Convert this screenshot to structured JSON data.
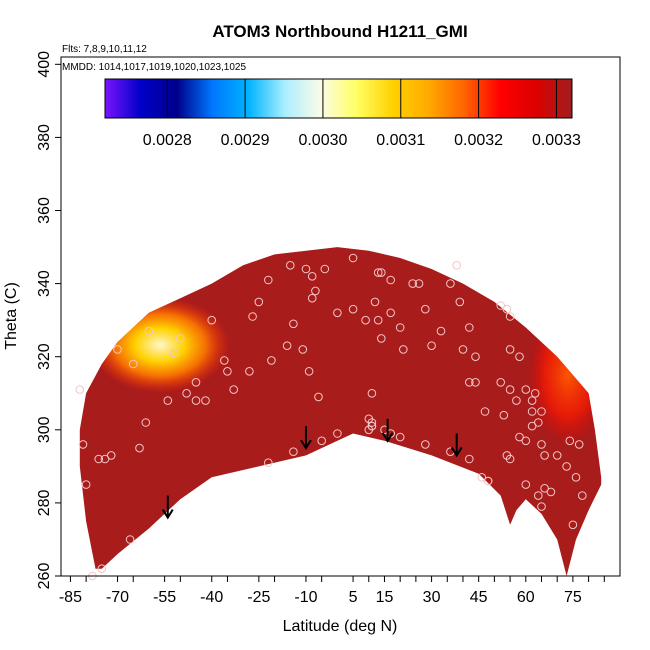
{
  "chart_data": {
    "type": "heatmap",
    "title": "ATOM3 Northbound H1211_GMI",
    "subtitle_lines": [
      "Flts: 7,8,9,10,11,12",
      "MMDD: 1014,1017,1019,1020,1023,1025"
    ],
    "xlabel": "Latitude (deg N)",
    "ylabel": "Theta (C)",
    "xlim": [
      -88,
      90
    ],
    "ylim": [
      260,
      402
    ],
    "x_ticks": [
      -85,
      -70,
      -55,
      -40,
      -25,
      -10,
      5,
      15,
      30,
      45,
      60,
      75
    ],
    "x_ticks_unlabeled": [
      -80,
      -65,
      -50,
      -35,
      -20,
      -5,
      10,
      20,
      25,
      35,
      40,
      50,
      55,
      65,
      70,
      80,
      85
    ],
    "y_ticks": [
      260,
      280,
      300,
      320,
      340,
      360,
      380,
      400
    ],
    "colorbar": {
      "min": 0.00272,
      "max": 0.00332,
      "ticks": [
        0.0028,
        0.0029,
        0.003,
        0.0031,
        0.0032,
        0.0033
      ],
      "tick_labels": [
        "0.0028",
        "0.0029",
        "0.0030",
        "0.0031",
        "0.0032",
        "0.0033"
      ],
      "colors": [
        "#7a14ff",
        "#0000c8",
        "#00008c",
        "#0078ff",
        "#00b4ff",
        "#aaeeff",
        "#fbfbe6",
        "#ffff64",
        "#ffd200",
        "#ffaa00",
        "#ff6400",
        "#ff0000",
        "#dc0000",
        "#a01e1e"
      ]
    },
    "field_description_levels": {
      "background": 0.00332,
      "poleward_regions": 0.00327
    },
    "field_boundary": {
      "top": [
        [
          -80,
          310
        ],
        [
          -75,
          318
        ],
        [
          -70,
          324
        ],
        [
          -60,
          332
        ],
        [
          -55,
          334
        ],
        [
          -50,
          336
        ],
        [
          -40,
          340
        ],
        [
          -30,
          345
        ],
        [
          -20,
          348
        ],
        [
          -10,
          349
        ],
        [
          0,
          350
        ],
        [
          10,
          349
        ],
        [
          20,
          347
        ],
        [
          30,
          344
        ],
        [
          40,
          340
        ],
        [
          50,
          335
        ],
        [
          60,
          328
        ],
        [
          70,
          320
        ],
        [
          80,
          310
        ],
        [
          82,
          300
        ],
        [
          84,
          287
        ]
      ],
      "bottom": [
        [
          84,
          285
        ],
        [
          80,
          278
        ],
        [
          76,
          270
        ],
        [
          73,
          260
        ],
        [
          70,
          270
        ],
        [
          65,
          277
        ],
        [
          60,
          281
        ],
        [
          57,
          278
        ],
        [
          55,
          274
        ],
        [
          52,
          282
        ],
        [
          45,
          288
        ],
        [
          30,
          293
        ],
        [
          15,
          297
        ],
        [
          5,
          299
        ],
        [
          0,
          297
        ],
        [
          -10,
          293
        ],
        [
          -25,
          290
        ],
        [
          -40,
          287
        ],
        [
          -50,
          281
        ],
        [
          -60,
          273
        ],
        [
          -70,
          266
        ],
        [
          -75,
          262
        ],
        [
          -77,
          262
        ],
        [
          -80,
          275
        ],
        [
          -82,
          290
        ],
        [
          -82,
          300
        ]
      ]
    },
    "tropopause_arrows": [
      {
        "lat": -54,
        "theta": 282
      },
      {
        "lat": -10,
        "theta": 301
      },
      {
        "lat": 16,
        "theta": 303
      },
      {
        "lat": 38,
        "theta": 299
      }
    ],
    "observation_points": [
      [
        -78,
        260
      ],
      [
        -75,
        262
      ],
      [
        -80,
        285
      ],
      [
        -81,
        296
      ],
      [
        -82,
        311
      ],
      [
        -76,
        292
      ],
      [
        -74,
        292
      ],
      [
        -72,
        293
      ],
      [
        -63,
        295
      ],
      [
        -61,
        302
      ],
      [
        -66,
        270
      ],
      [
        -70,
        322
      ],
      [
        -65,
        318
      ],
      [
        -60,
        327
      ],
      [
        -52,
        321
      ],
      [
        -52,
        321
      ],
      [
        -48,
        310
      ],
      [
        -45,
        313
      ],
      [
        -42,
        308
      ],
      [
        -36,
        319
      ],
      [
        -33,
        311
      ],
      [
        -28,
        316
      ],
      [
        -27,
        331
      ],
      [
        -25,
        335
      ],
      [
        -21,
        319
      ],
      [
        -16,
        323
      ],
      [
        -14,
        329
      ],
      [
        -11,
        322
      ],
      [
        -45,
        308
      ],
      [
        -54,
        308
      ],
      [
        -50,
        325
      ],
      [
        -40,
        330
      ],
      [
        -35,
        316
      ],
      [
        -22,
        291
      ],
      [
        -14,
        294
      ],
      [
        -5,
        297
      ],
      [
        0,
        299
      ],
      [
        -6,
        309
      ],
      [
        -9,
        316
      ],
      [
        -22,
        341
      ],
      [
        -15,
        345
      ],
      [
        -10,
        344
      ],
      [
        -8,
        342
      ],
      [
        -4,
        344
      ],
      [
        5,
        347
      ],
      [
        13,
        343
      ],
      [
        14,
        343
      ],
      [
        17,
        341
      ],
      [
        -8,
        336
      ],
      [
        -7,
        338
      ],
      [
        0,
        332
      ],
      [
        5,
        333
      ],
      [
        9,
        330
      ],
      [
        12,
        335
      ],
      [
        13,
        330
      ],
      [
        14,
        325
      ],
      [
        17,
        332
      ],
      [
        20,
        328
      ],
      [
        21,
        322
      ],
      [
        24,
        340
      ],
      [
        26,
        340
      ],
      [
        28,
        333
      ],
      [
        30,
        323
      ],
      [
        33,
        327
      ],
      [
        36,
        340
      ],
      [
        38,
        345
      ],
      [
        39,
        335
      ],
      [
        40,
        322
      ],
      [
        42,
        328
      ],
      [
        44,
        320
      ],
      [
        10,
        300
      ],
      [
        11,
        301
      ],
      [
        11,
        302
      ],
      [
        11,
        301
      ],
      [
        10,
        303
      ],
      [
        11,
        310
      ],
      [
        15,
        300
      ],
      [
        17,
        299
      ],
      [
        20,
        298
      ],
      [
        28,
        296
      ],
      [
        36,
        294
      ],
      [
        42,
        292
      ],
      [
        46,
        287
      ],
      [
        48,
        286
      ],
      [
        48,
        286
      ],
      [
        44,
        313
      ],
      [
        42,
        313
      ],
      [
        52,
        313
      ],
      [
        54,
        333
      ],
      [
        52,
        334
      ],
      [
        55,
        331
      ],
      [
        55,
        322
      ],
      [
        58,
        320
      ],
      [
        60,
        311
      ],
      [
        62,
        308
      ],
      [
        62,
        305
      ],
      [
        63,
        310
      ],
      [
        55,
        311
      ],
      [
        57,
        308
      ],
      [
        53,
        304
      ],
      [
        47,
        305
      ],
      [
        62,
        301
      ],
      [
        64,
        302
      ],
      [
        65,
        305
      ],
      [
        65,
        296
      ],
      [
        66,
        293
      ],
      [
        70,
        293
      ],
      [
        74,
        297
      ],
      [
        77,
        296
      ],
      [
        76,
        287
      ],
      [
        78,
        282
      ],
      [
        73,
        290
      ],
      [
        60,
        297
      ],
      [
        58,
        298
      ],
      [
        55,
        292
      ],
      [
        54,
        293
      ],
      [
        60,
        285
      ],
      [
        66,
        284
      ],
      [
        64,
        282
      ],
      [
        65,
        279
      ],
      [
        68,
        283
      ],
      [
        75,
        274
      ]
    ]
  }
}
